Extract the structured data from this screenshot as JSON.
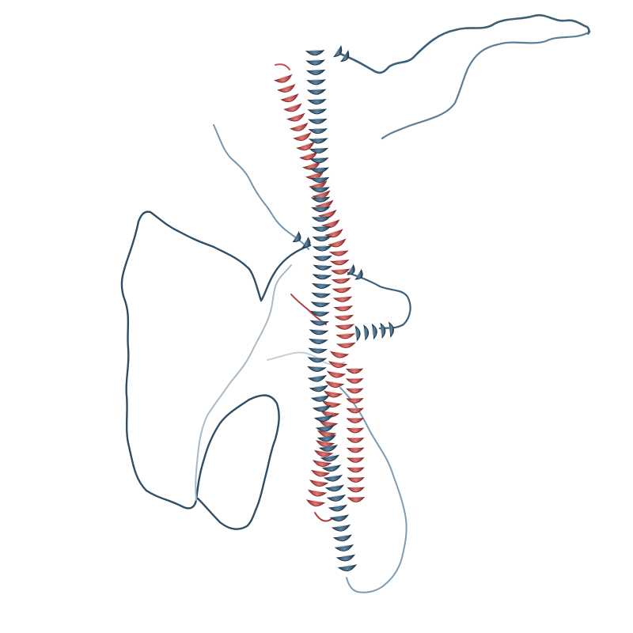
{
  "scene": {
    "subject": "protein-structure-cartoon",
    "background_color": "#ffffff",
    "chains": [
      {
        "name": "chain-a",
        "representation": "ribbon-helix-and-coil",
        "color": "#3d5f78",
        "highlight": "#6f93ad"
      },
      {
        "name": "chain-b",
        "representation": "ribbon-helix",
        "color": "#c0504f",
        "highlight": "#e08a86"
      }
    ]
  }
}
